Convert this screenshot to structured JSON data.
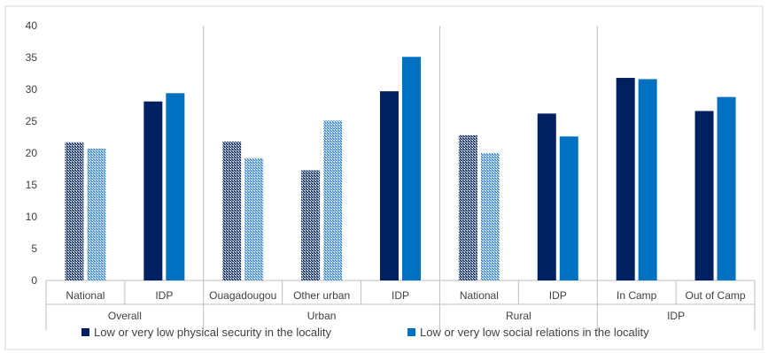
{
  "chart_data": {
    "type": "bar",
    "groups": [
      {
        "label": "Overall",
        "categories": [
          "National",
          "IDP"
        ]
      },
      {
        "label": "Urban",
        "categories": [
          "Ouagadougou",
          "Other urban",
          "IDP"
        ]
      },
      {
        "label": "Rural",
        "categories": [
          "National",
          "IDP"
        ]
      },
      {
        "label": "IDP",
        "categories": [
          "In Camp",
          "Out of Camp"
        ]
      }
    ],
    "categories": [
      "National",
      "IDP",
      "Ouagadougou",
      "Other urban",
      "IDP",
      "National",
      "IDP",
      "In Camp",
      "Out of Camp"
    ],
    "patterned_categories": [
      0,
      2,
      3,
      5
    ],
    "series": [
      {
        "name": "Low or very low physical security in the locality",
        "color": "#002060",
        "pattern_color": "#1F3864",
        "values": [
          21.7,
          28.1,
          21.8,
          17.3,
          29.7,
          22.8,
          26.2,
          31.8,
          26.6
        ]
      },
      {
        "name": "Low or very low social relations in the locality",
        "color": "#0070C0",
        "pattern_color": "#4A90D9",
        "values": [
          20.7,
          29.4,
          19.2,
          25.1,
          35.1,
          20.0,
          22.6,
          31.6,
          28.8
        ]
      }
    ],
    "ylim": [
      0,
      40
    ],
    "yticks": [
      0,
      5,
      10,
      15,
      20,
      25,
      30,
      35,
      40
    ],
    "grid": false,
    "legend": "bottom"
  }
}
